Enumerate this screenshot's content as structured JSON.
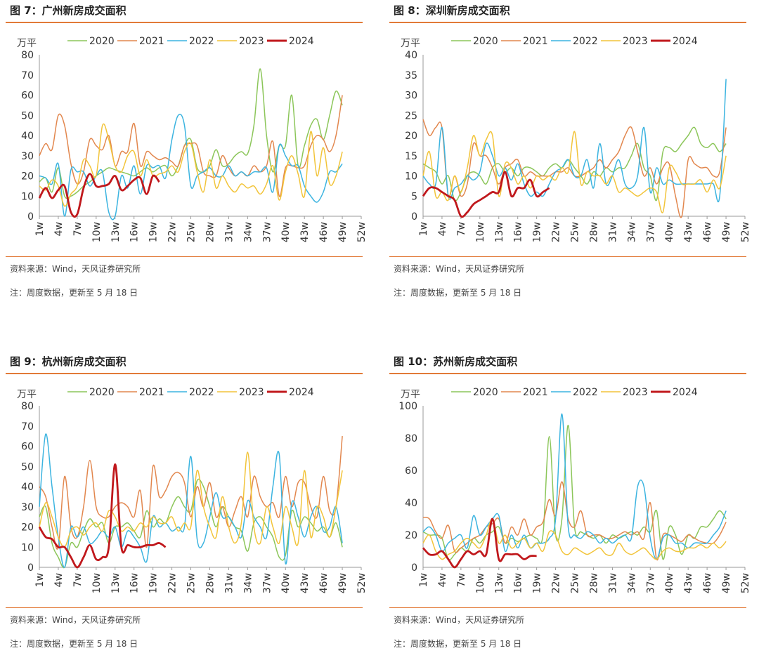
{
  "chart_data": [
    {
      "type": "line",
      "title": "图 7：广州新房成交面积",
      "ylabel": "万平",
      "ylim": [
        0,
        80
      ],
      "yticks": [
        0,
        10,
        20,
        30,
        40,
        50,
        60,
        70,
        80
      ],
      "xticks": [
        "1w",
        "4w",
        "7w",
        "10w",
        "13w",
        "16w",
        "19w",
        "22w",
        "25w",
        "28w",
        "31w",
        "34w",
        "37w",
        "40w",
        "43w",
        "46w",
        "49w",
        "52w"
      ],
      "legend_position": "top",
      "source": "资料来源：Wind，天风证券研究所",
      "note": "注：周度数据，更新至 5 月 18 日",
      "series": [
        {
          "name": "2020",
          "color": "#8cc65a",
          "values": [
            17,
            19,
            12,
            24,
            10,
            10,
            12,
            15,
            17,
            20,
            22,
            24,
            23,
            22,
            21,
            20,
            22,
            24,
            22,
            24,
            25,
            20,
            25,
            35,
            38,
            24,
            22,
            25,
            33,
            25,
            26,
            30,
            32,
            31,
            45,
            73,
            40,
            22,
            35,
            35,
            60,
            25,
            35,
            45,
            48,
            38,
            50,
            62,
            55
          ]
        },
        {
          "name": "2021",
          "color": "#e2874e",
          "values": [
            30,
            36,
            33,
            50,
            45,
            26,
            16,
            22,
            38,
            35,
            33,
            40,
            25,
            32,
            32,
            46,
            25,
            32,
            30,
            28,
            29,
            27,
            25,
            35,
            36,
            35,
            22,
            20,
            20,
            30,
            24,
            20,
            22,
            20,
            25,
            22,
            25,
            37,
            10,
            24,
            25,
            24,
            25,
            35,
            40,
            38,
            32,
            40,
            60
          ]
        },
        {
          "name": "2022",
          "color": "#3cb4e0",
          "values": [
            20,
            19,
            16,
            26,
            0,
            23,
            22,
            22,
            15,
            20,
            22,
            2,
            0,
            20,
            14,
            25,
            11,
            25,
            24,
            25,
            19,
            38,
            50,
            45,
            15,
            20,
            22,
            24,
            20,
            20,
            25,
            20,
            22,
            20,
            22,
            22,
            24,
            12,
            35,
            30,
            25,
            25,
            15,
            10,
            7,
            12,
            22,
            22,
            26
          ]
        },
        {
          "name": "2023",
          "color": "#f2c43a",
          "values": [
            15,
            13,
            18,
            15,
            5,
            11,
            15,
            28,
            25,
            20,
            45,
            38,
            25,
            22,
            30,
            32,
            20,
            28,
            20,
            21,
            22,
            25,
            22,
            32,
            36,
            22,
            12,
            28,
            14,
            20,
            15,
            12,
            16,
            14,
            15,
            11,
            16,
            25,
            8,
            22,
            30,
            21,
            10,
            42,
            20,
            34,
            16,
            20,
            32
          ]
        },
        {
          "name": "2024",
          "color": "#c0181c",
          "values": [
            9,
            14,
            9,
            13,
            15,
            2,
            1,
            14,
            21,
            15,
            15,
            16,
            20,
            13,
            15,
            18,
            19,
            11,
            20,
            17
          ]
        }
      ]
    },
    {
      "type": "line",
      "title": "图 8：深圳新房成交面积",
      "ylabel": "万平",
      "ylim": [
        0,
        40
      ],
      "yticks": [
        0,
        5,
        10,
        15,
        20,
        25,
        30,
        35,
        40
      ],
      "xticks": [
        "1w",
        "4w",
        "7w",
        "10w",
        "13w",
        "16w",
        "19w",
        "22w",
        "25w",
        "28w",
        "31w",
        "34w",
        "37w",
        "40w",
        "43w",
        "46w",
        "49w",
        "52w"
      ],
      "legend_position": "top",
      "source": "资料来源：Wind，天风证券研究所",
      "note": "注：周度数据，更新至 5 月 18 日",
      "series": [
        {
          "name": "2020",
          "color": "#8cc65a",
          "values": [
            13,
            12,
            11,
            8,
            10,
            4,
            6,
            10,
            11,
            10,
            8,
            12,
            13,
            11,
            12,
            10,
            12,
            12,
            11,
            10,
            12,
            13,
            12,
            14,
            12,
            10,
            8,
            11,
            10,
            12,
            11,
            12,
            12,
            15,
            18,
            12,
            10,
            4,
            16,
            17,
            16,
            18,
            20,
            22,
            18,
            17,
            18,
            16,
            18
          ]
        },
        {
          "name": "2021",
          "color": "#e2874e",
          "values": [
            24,
            20,
            22,
            22,
            5,
            10,
            5,
            8,
            18,
            15,
            15,
            12,
            8,
            12,
            13,
            14,
            10,
            11,
            10,
            10,
            10,
            11,
            11,
            12,
            10,
            10,
            11,
            12,
            14,
            12,
            14,
            16,
            20,
            22,
            16,
            10,
            12,
            8,
            12,
            13,
            5,
            0,
            14,
            13,
            12,
            12,
            10,
            11,
            22
          ]
        },
        {
          "name": "2022",
          "color": "#3cb4e0",
          "values": [
            10,
            8,
            8,
            22,
            5,
            7,
            8,
            10,
            9,
            11,
            18,
            15,
            10,
            12,
            9,
            13,
            8,
            5,
            6,
            5,
            8,
            11,
            12,
            14,
            10,
            10,
            14,
            7,
            18,
            8,
            10,
            14,
            8,
            7,
            10,
            22,
            6,
            12,
            8,
            9,
            8,
            8,
            8,
            8,
            8,
            8,
            8,
            5,
            34
          ]
        },
        {
          "name": "2023",
          "color": "#f2c43a",
          "values": [
            10,
            16,
            5,
            6,
            4,
            10,
            6,
            12,
            20,
            15,
            19,
            20,
            5,
            13,
            12,
            8,
            10,
            7,
            10,
            9,
            10,
            9,
            12,
            11,
            21,
            8,
            11,
            10,
            10,
            8,
            10,
            6,
            7,
            6,
            5,
            6,
            7,
            6,
            1,
            12,
            11,
            8,
            8,
            8,
            9,
            6,
            9,
            7,
            15
          ]
        },
        {
          "name": "2024",
          "color": "#c0181c",
          "values": [
            5,
            7,
            7,
            6,
            5,
            4,
            0,
            1,
            3,
            4,
            5,
            6,
            6,
            11,
            5,
            7,
            7,
            9,
            5,
            6,
            7
          ]
        }
      ]
    },
    {
      "type": "line",
      "title": "图 9：杭州新房成交面积",
      "ylabel": "万平",
      "ylim": [
        0,
        80
      ],
      "yticks": [
        0,
        10,
        20,
        30,
        40,
        50,
        60,
        70,
        80
      ],
      "xticks": [
        "1w",
        "4w",
        "7w",
        "10w",
        "13w",
        "16w",
        "19w",
        "22w",
        "25w",
        "28w",
        "31w",
        "34w",
        "37w",
        "40w",
        "43w",
        "46w",
        "49w",
        "52w"
      ],
      "legend_position": "top",
      "source": "资料来源：Wind，天风证券研究所",
      "note": "注：周度数据，更新至 5 月 18 日",
      "series": [
        {
          "name": "2020",
          "color": "#8cc65a",
          "values": [
            25,
            30,
            12,
            5,
            0,
            12,
            10,
            18,
            24,
            20,
            22,
            12,
            20,
            20,
            22,
            18,
            15,
            28,
            20,
            24,
            22,
            30,
            35,
            30,
            28,
            43,
            40,
            30,
            20,
            30,
            25,
            20,
            18,
            8,
            22,
            25,
            20,
            15,
            5,
            6,
            28,
            20,
            25,
            22,
            18,
            20,
            15,
            22,
            10
          ]
        },
        {
          "name": "2021",
          "color": "#e2874e",
          "values": [
            40,
            35,
            20,
            10,
            45,
            20,
            15,
            30,
            53,
            30,
            25,
            25,
            30,
            32,
            30,
            25,
            38,
            10,
            50,
            35,
            38,
            45,
            47,
            42,
            25,
            40,
            30,
            42,
            25,
            30,
            20,
            28,
            35,
            25,
            45,
            35,
            30,
            32,
            25,
            45,
            30,
            42,
            42,
            30,
            25,
            45,
            28,
            30,
            65
          ]
        },
        {
          "name": "2022",
          "color": "#3cb4e0",
          "values": [
            30,
            66,
            40,
            15,
            0,
            20,
            15,
            20,
            12,
            14,
            18,
            15,
            20,
            10,
            18,
            15,
            10,
            3,
            25,
            20,
            22,
            18,
            20,
            20,
            55,
            14,
            12,
            25,
            37,
            25,
            25,
            20,
            15,
            33,
            25,
            20,
            15,
            40,
            56,
            2,
            32,
            25,
            15,
            25,
            30,
            18,
            20,
            30,
            12
          ]
        },
        {
          "name": "2023",
          "color": "#f2c43a",
          "values": [
            20,
            32,
            25,
            15,
            10,
            18,
            20,
            16,
            20,
            22,
            18,
            28,
            25,
            18,
            20,
            18,
            22,
            20,
            25,
            22,
            22,
            25,
            18,
            22,
            20,
            48,
            30,
            20,
            15,
            35,
            20,
            12,
            22,
            57,
            20,
            12,
            30,
            20,
            12,
            30,
            20,
            12,
            48,
            15,
            30,
            25,
            15,
            30,
            48
          ]
        },
        {
          "name": "2024",
          "color": "#c0181c",
          "values": [
            20,
            15,
            14,
            10,
            10,
            5,
            0,
            5,
            11,
            4,
            5,
            10,
            51,
            10,
            11,
            10,
            10,
            11,
            11,
            12,
            10
          ]
        }
      ]
    },
    {
      "type": "line",
      "title": "图 10：苏州新房成交面积",
      "ylabel": "万平",
      "ylim": [
        0,
        100
      ],
      "yticks": [
        0,
        20,
        40,
        60,
        80,
        100
      ],
      "xticks": [
        "1w",
        "4w",
        "7w",
        "10w",
        "13w",
        "16w",
        "19w",
        "22w",
        "25w",
        "28w",
        "31w",
        "34w",
        "37w",
        "40w",
        "43w",
        "46w",
        "49w",
        "52w"
      ],
      "legend_position": "top",
      "source": "资料来源：Wind，天风证券研究所",
      "note": "注：周度数据，更新至 5 月 18 日",
      "series": [
        {
          "name": "2020",
          "color": "#8cc65a",
          "values": [
            22,
            20,
            20,
            18,
            5,
            8,
            12,
            10,
            18,
            15,
            20,
            22,
            25,
            15,
            18,
            16,
            18,
            20,
            18,
            20,
            81,
            20,
            30,
            88,
            25,
            22,
            20,
            18,
            20,
            15,
            20,
            18,
            20,
            22,
            20,
            25,
            22,
            35,
            5,
            25,
            20,
            8,
            20,
            18,
            25,
            25,
            30,
            35,
            30
          ]
        },
        {
          "name": "2021",
          "color": "#e2874e",
          "values": [
            31,
            30,
            22,
            18,
            26,
            10,
            12,
            15,
            18,
            20,
            25,
            27,
            30,
            15,
            25,
            20,
            30,
            20,
            25,
            28,
            42,
            32,
            53,
            30,
            25,
            35,
            20,
            20,
            20,
            18,
            18,
            20,
            22,
            20,
            22,
            18,
            40,
            5,
            20,
            20,
            18,
            16,
            20,
            18,
            16,
            15,
            15,
            20,
            28
          ]
        },
        {
          "name": "2022",
          "color": "#3cb4e0",
          "values": [
            22,
            25,
            20,
            10,
            15,
            18,
            20,
            12,
            32,
            20,
            25,
            30,
            32,
            10,
            20,
            12,
            20,
            12,
            15,
            15,
            18,
            30,
            95,
            25,
            20,
            18,
            22,
            20,
            15,
            18,
            15,
            18,
            20,
            18,
            50,
            50,
            18,
            5,
            18,
            20,
            15,
            15,
            12,
            15,
            15,
            15,
            20,
            25,
            35
          ]
        },
        {
          "name": "2023",
          "color": "#f2c43a",
          "values": [
            15,
            20,
            10,
            5,
            8,
            10,
            15,
            18,
            15,
            12,
            20,
            30,
            15,
            20,
            12,
            15,
            18,
            12,
            15,
            10,
            22,
            20,
            10,
            8,
            12,
            10,
            8,
            10,
            12,
            8,
            8,
            15,
            10,
            8,
            10,
            12,
            8,
            5,
            10,
            12,
            10,
            10,
            12,
            12,
            14,
            12,
            15,
            12,
            16
          ]
        },
        {
          "name": "2024",
          "color": "#c0181c",
          "values": [
            12,
            8,
            8,
            10,
            5,
            0,
            5,
            10,
            8,
            10,
            8,
            30,
            5,
            8,
            8,
            8,
            5,
            7,
            7
          ]
        }
      ]
    }
  ]
}
